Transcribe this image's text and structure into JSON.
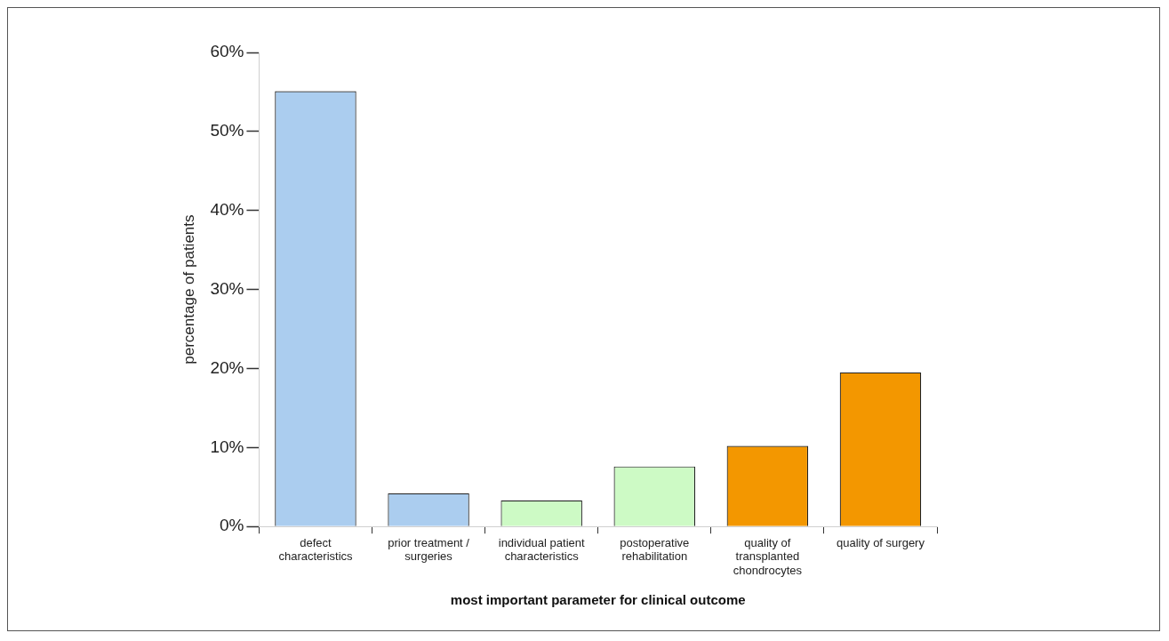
{
  "chart_data": {
    "type": "bar",
    "xlabel": "most important parameter for clinical outcome",
    "ylabel": "percentage of patients",
    "categories": [
      "defect characteristics",
      "prior treatment / surgeries",
      "individual patient characteristics",
      "postoperative rehabilitation",
      "quality of transplanted chondrocytes",
      "quality of surgery"
    ],
    "values": [
      55.1,
      4.2,
      3.3,
      7.6,
      10.2,
      19.5
    ],
    "colors": [
      "#abcdef",
      "#abcdef",
      "#cdfac5",
      "#cdfac5",
      "#f39700",
      "#f39700"
    ],
    "ylim": [
      0,
      60
    ],
    "yticks": [
      {
        "value": 0,
        "label": "0%"
      },
      {
        "value": 10,
        "label": "10%"
      },
      {
        "value": 20,
        "label": "20%"
      },
      {
        "value": 30,
        "label": "30%"
      },
      {
        "value": 40,
        "label": "40%"
      },
      {
        "value": 50,
        "label": "50%"
      },
      {
        "value": 60,
        "label": "60%"
      }
    ],
    "grid": false,
    "legend": false
  }
}
